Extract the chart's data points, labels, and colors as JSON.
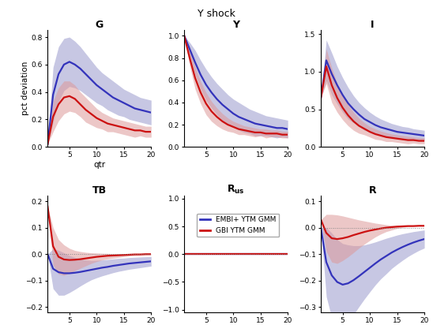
{
  "title": "Y shock",
  "blue_color": "#3333bb",
  "red_color": "#cc1111",
  "blue_fill": "#9999cc",
  "red_fill": "#dd9999",
  "quarters": 20,
  "G": {
    "blue_mean": [
      0.02,
      0.38,
      0.53,
      0.6,
      0.62,
      0.6,
      0.57,
      0.53,
      0.49,
      0.45,
      0.42,
      0.39,
      0.36,
      0.34,
      0.32,
      0.3,
      0.28,
      0.27,
      0.26,
      0.25
    ],
    "blue_upper": [
      0.02,
      0.58,
      0.73,
      0.79,
      0.8,
      0.77,
      0.73,
      0.68,
      0.63,
      0.58,
      0.54,
      0.51,
      0.48,
      0.45,
      0.42,
      0.4,
      0.38,
      0.36,
      0.35,
      0.34
    ],
    "blue_lower": [
      0.02,
      0.18,
      0.33,
      0.41,
      0.44,
      0.43,
      0.41,
      0.38,
      0.35,
      0.32,
      0.3,
      0.27,
      0.25,
      0.23,
      0.22,
      0.2,
      0.19,
      0.18,
      0.17,
      0.16
    ],
    "red_mean": [
      0.02,
      0.22,
      0.31,
      0.36,
      0.37,
      0.35,
      0.31,
      0.27,
      0.24,
      0.21,
      0.19,
      0.17,
      0.16,
      0.15,
      0.14,
      0.13,
      0.12,
      0.12,
      0.11,
      0.11
    ],
    "red_upper": [
      0.02,
      0.33,
      0.43,
      0.48,
      0.48,
      0.45,
      0.4,
      0.36,
      0.32,
      0.28,
      0.25,
      0.23,
      0.21,
      0.2,
      0.19,
      0.18,
      0.17,
      0.16,
      0.15,
      0.15
    ],
    "red_lower": [
      0.02,
      0.11,
      0.19,
      0.24,
      0.26,
      0.25,
      0.22,
      0.18,
      0.16,
      0.14,
      0.13,
      0.11,
      0.11,
      0.1,
      0.09,
      0.08,
      0.07,
      0.08,
      0.07,
      0.07
    ],
    "ylim": [
      0,
      0.85
    ],
    "yticks": [
      0,
      0.2,
      0.4,
      0.6,
      0.8
    ],
    "show_ylabel": true,
    "show_xlabel": true
  },
  "Y": {
    "blue_mean": [
      1.0,
      0.88,
      0.76,
      0.65,
      0.56,
      0.49,
      0.43,
      0.38,
      0.34,
      0.3,
      0.27,
      0.25,
      0.23,
      0.21,
      0.2,
      0.19,
      0.18,
      0.17,
      0.17,
      0.16
    ],
    "blue_upper": [
      1.0,
      0.94,
      0.87,
      0.78,
      0.7,
      0.63,
      0.57,
      0.52,
      0.47,
      0.43,
      0.4,
      0.37,
      0.34,
      0.32,
      0.3,
      0.28,
      0.27,
      0.26,
      0.25,
      0.24
    ],
    "blue_lower": [
      1.0,
      0.82,
      0.65,
      0.52,
      0.42,
      0.35,
      0.29,
      0.24,
      0.21,
      0.18,
      0.15,
      0.13,
      0.12,
      0.1,
      0.1,
      0.1,
      0.09,
      0.08,
      0.09,
      0.08
    ],
    "red_mean": [
      1.0,
      0.8,
      0.62,
      0.49,
      0.39,
      0.32,
      0.27,
      0.23,
      0.2,
      0.18,
      0.16,
      0.15,
      0.14,
      0.13,
      0.13,
      0.12,
      0.12,
      0.12,
      0.11,
      0.11
    ],
    "red_upper": [
      1.0,
      0.87,
      0.72,
      0.59,
      0.49,
      0.41,
      0.35,
      0.3,
      0.26,
      0.23,
      0.21,
      0.19,
      0.18,
      0.17,
      0.16,
      0.16,
      0.15,
      0.15,
      0.14,
      0.14
    ],
    "red_lower": [
      1.0,
      0.73,
      0.52,
      0.39,
      0.29,
      0.23,
      0.19,
      0.16,
      0.14,
      0.13,
      0.11,
      0.11,
      0.1,
      0.09,
      0.1,
      0.08,
      0.09,
      0.09,
      0.08,
      0.08
    ],
    "ylim": [
      0,
      1.05
    ],
    "yticks": [
      0,
      0.2,
      0.4,
      0.6,
      0.8,
      1.0
    ],
    "show_ylabel": false,
    "show_xlabel": false
  },
  "I": {
    "blue_mean": [
      0.65,
      1.15,
      0.97,
      0.82,
      0.69,
      0.58,
      0.5,
      0.43,
      0.37,
      0.33,
      0.29,
      0.26,
      0.24,
      0.22,
      0.2,
      0.19,
      0.18,
      0.17,
      0.16,
      0.15
    ],
    "blue_upper": [
      0.65,
      1.42,
      1.25,
      1.07,
      0.92,
      0.79,
      0.68,
      0.59,
      0.52,
      0.46,
      0.41,
      0.37,
      0.34,
      0.31,
      0.29,
      0.27,
      0.26,
      0.24,
      0.23,
      0.22
    ],
    "blue_lower": [
      0.65,
      0.88,
      0.69,
      0.57,
      0.46,
      0.37,
      0.32,
      0.27,
      0.22,
      0.2,
      0.17,
      0.15,
      0.14,
      0.13,
      0.11,
      0.11,
      0.1,
      0.1,
      0.09,
      0.08
    ],
    "red_mean": [
      0.65,
      1.07,
      0.82,
      0.65,
      0.52,
      0.42,
      0.34,
      0.28,
      0.24,
      0.2,
      0.17,
      0.15,
      0.13,
      0.12,
      0.11,
      0.1,
      0.09,
      0.09,
      0.08,
      0.08
    ],
    "red_upper": [
      0.65,
      1.3,
      1.05,
      0.84,
      0.68,
      0.56,
      0.46,
      0.38,
      0.32,
      0.27,
      0.24,
      0.21,
      0.19,
      0.17,
      0.16,
      0.15,
      0.14,
      0.13,
      0.12,
      0.12
    ],
    "red_lower": [
      0.65,
      0.84,
      0.59,
      0.46,
      0.36,
      0.28,
      0.22,
      0.18,
      0.16,
      0.13,
      0.1,
      0.09,
      0.07,
      0.07,
      0.06,
      0.05,
      0.04,
      0.05,
      0.04,
      0.04
    ],
    "ylim": [
      0,
      1.55
    ],
    "yticks": [
      0,
      0.5,
      1.0,
      1.5
    ],
    "show_ylabel": false,
    "show_xlabel": false
  },
  "TB": {
    "blue_mean": [
      0.0,
      -0.055,
      -0.068,
      -0.072,
      -0.072,
      -0.07,
      -0.067,
      -0.063,
      -0.059,
      -0.055,
      -0.051,
      -0.048,
      -0.044,
      -0.041,
      -0.038,
      -0.035,
      -0.033,
      -0.031,
      -0.029,
      -0.027
    ],
    "blue_upper": [
      0.0,
      0.02,
      0.015,
      0.005,
      -0.005,
      -0.012,
      -0.018,
      -0.022,
      -0.024,
      -0.023,
      -0.022,
      -0.02,
      -0.018,
      -0.016,
      -0.015,
      -0.013,
      -0.012,
      -0.011,
      -0.01,
      -0.009
    ],
    "blue_lower": [
      0.0,
      -0.13,
      -0.155,
      -0.155,
      -0.145,
      -0.133,
      -0.12,
      -0.108,
      -0.097,
      -0.089,
      -0.082,
      -0.076,
      -0.07,
      -0.065,
      -0.061,
      -0.057,
      -0.054,
      -0.051,
      -0.048,
      -0.045
    ],
    "red_mean": [
      0.18,
      0.03,
      -0.01,
      -0.02,
      -0.022,
      -0.021,
      -0.019,
      -0.016,
      -0.013,
      -0.01,
      -0.008,
      -0.006,
      -0.005,
      -0.004,
      -0.003,
      -0.002,
      -0.001,
      -0.001,
      0.0,
      0.0
    ],
    "red_upper": [
      0.18,
      0.1,
      0.055,
      0.035,
      0.022,
      0.014,
      0.01,
      0.007,
      0.005,
      0.004,
      0.003,
      0.003,
      0.002,
      0.002,
      0.001,
      0.001,
      0.001,
      0.001,
      0.001,
      0.001
    ],
    "red_lower": [
      0.18,
      -0.04,
      -0.075,
      -0.08,
      -0.072,
      -0.062,
      -0.053,
      -0.044,
      -0.035,
      -0.028,
      -0.022,
      -0.018,
      -0.015,
      -0.012,
      -0.009,
      -0.007,
      -0.005,
      -0.004,
      -0.003,
      -0.002
    ],
    "ylim": [
      -0.22,
      0.22
    ],
    "yticks": [
      -0.2,
      -0.1,
      0.0,
      0.1,
      0.2
    ],
    "show_ylabel": false,
    "show_xlabel": false
  },
  "R_us": {
    "blue_mean": [
      0.0,
      0.0,
      0.0,
      0.0,
      0.0,
      0.0,
      0.0,
      0.0,
      0.0,
      0.0,
      0.0,
      0.0,
      0.0,
      0.0,
      0.0,
      0.0,
      0.0,
      0.0,
      0.0,
      0.0
    ],
    "blue_upper": [
      0.0,
      0.0,
      0.0,
      0.0,
      0.0,
      0.0,
      0.0,
      0.0,
      0.0,
      0.0,
      0.0,
      0.0,
      0.0,
      0.0,
      0.0,
      0.0,
      0.0,
      0.0,
      0.0,
      0.0
    ],
    "blue_lower": [
      0.0,
      0.0,
      0.0,
      0.0,
      0.0,
      0.0,
      0.0,
      0.0,
      0.0,
      0.0,
      0.0,
      0.0,
      0.0,
      0.0,
      0.0,
      0.0,
      0.0,
      0.0,
      0.0,
      0.0
    ],
    "red_mean": [
      0.0,
      0.0,
      0.0,
      0.0,
      0.0,
      0.0,
      0.0,
      0.0,
      0.0,
      0.0,
      0.0,
      0.0,
      0.0,
      0.0,
      0.0,
      0.0,
      0.0,
      0.0,
      0.0,
      0.0
    ],
    "red_upper": [
      0.0,
      0.0,
      0.0,
      0.0,
      0.0,
      0.0,
      0.0,
      0.0,
      0.0,
      0.0,
      0.0,
      0.0,
      0.0,
      0.0,
      0.0,
      0.0,
      0.0,
      0.0,
      0.0,
      0.0
    ],
    "red_lower": [
      0.0,
      0.0,
      0.0,
      0.0,
      0.0,
      0.0,
      0.0,
      0.0,
      0.0,
      0.0,
      0.0,
      0.0,
      0.0,
      0.0,
      0.0,
      0.0,
      0.0,
      0.0,
      0.0,
      0.0
    ],
    "ylim": [
      -1.05,
      1.05
    ],
    "yticks": [
      -1,
      -0.5,
      0,
      0.5,
      1
    ],
    "show_ylabel": false,
    "show_xlabel": false
  },
  "R": {
    "blue_mean": [
      0.0,
      -0.13,
      -0.18,
      -0.205,
      -0.215,
      -0.21,
      -0.198,
      -0.183,
      -0.167,
      -0.151,
      -0.135,
      -0.12,
      -0.107,
      -0.094,
      -0.083,
      -0.073,
      -0.064,
      -0.056,
      -0.049,
      -0.043
    ],
    "blue_upper": [
      0.0,
      0.0,
      -0.02,
      -0.045,
      -0.06,
      -0.065,
      -0.068,
      -0.068,
      -0.065,
      -0.06,
      -0.054,
      -0.047,
      -0.04,
      -0.034,
      -0.028,
      -0.023,
      -0.019,
      -0.015,
      -0.012,
      -0.009
    ],
    "blue_lower": [
      0.0,
      -0.26,
      -0.34,
      -0.365,
      -0.37,
      -0.355,
      -0.328,
      -0.298,
      -0.269,
      -0.242,
      -0.216,
      -0.193,
      -0.174,
      -0.154,
      -0.138,
      -0.123,
      -0.109,
      -0.097,
      -0.086,
      -0.077
    ],
    "red_mean": [
      0.03,
      -0.02,
      -0.04,
      -0.043,
      -0.04,
      -0.035,
      -0.028,
      -0.022,
      -0.016,
      -0.011,
      -0.007,
      -0.003,
      0.0,
      0.002,
      0.004,
      0.005,
      0.006,
      0.006,
      0.007,
      0.007
    ],
    "red_upper": [
      0.03,
      0.05,
      0.05,
      0.048,
      0.044,
      0.039,
      0.034,
      0.029,
      0.025,
      0.021,
      0.017,
      0.014,
      0.011,
      0.009,
      0.008,
      0.007,
      0.006,
      0.006,
      0.006,
      0.006
    ],
    "red_lower": [
      0.03,
      -0.09,
      -0.13,
      -0.135,
      -0.124,
      -0.11,
      -0.094,
      -0.077,
      -0.062,
      -0.048,
      -0.035,
      -0.024,
      -0.015,
      -0.009,
      -0.003,
      0.001,
      0.004,
      0.006,
      0.008,
      0.008
    ],
    "ylim": [
      -0.32,
      0.12
    ],
    "yticks": [
      -0.3,
      -0.2,
      -0.1,
      0.0,
      0.1
    ],
    "show_ylabel": false,
    "show_xlabel": false
  },
  "legend": {
    "blue_label": "EMBI+ YTM GMM",
    "red_label": "GBI YTM GMM"
  }
}
